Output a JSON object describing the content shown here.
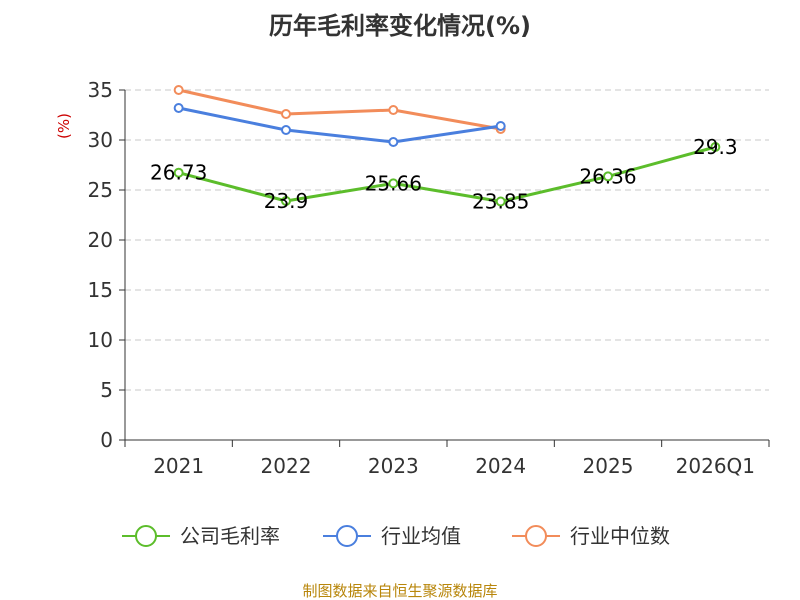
{
  "chart_data": {
    "type": "line",
    "title": "历年毛利率变化情况(%)",
    "ylabel": "(%)",
    "xlabel": "",
    "categories": [
      "2021",
      "2022",
      "2023",
      "2024",
      "2025",
      "2026Q1"
    ],
    "ylim": [
      0,
      35
    ],
    "yticks": [
      "0",
      "5",
      "10",
      "15",
      "20",
      "25",
      "30",
      "35"
    ],
    "grid": "horizontal dashed",
    "legend_position": "bottom",
    "series": [
      {
        "name": "公司毛利率",
        "color": "#5cbd2b",
        "values": [
          26.73,
          23.9,
          25.66,
          23.85,
          26.36,
          29.3
        ],
        "labels": [
          "26.73",
          "23.9",
          "25.66",
          "23.85",
          "26.36",
          "29.3"
        ]
      },
      {
        "name": "行业均值",
        "color": "#4a7fde",
        "values": [
          33.2,
          31.0,
          29.8,
          31.4,
          null,
          null
        ]
      },
      {
        "name": "行业中位数",
        "color": "#f28c5a",
        "values": [
          35.0,
          32.6,
          33.0,
          31.1,
          null,
          null
        ]
      }
    ]
  },
  "footer": {
    "source": "制图数据来自恒生聚源数据库"
  }
}
